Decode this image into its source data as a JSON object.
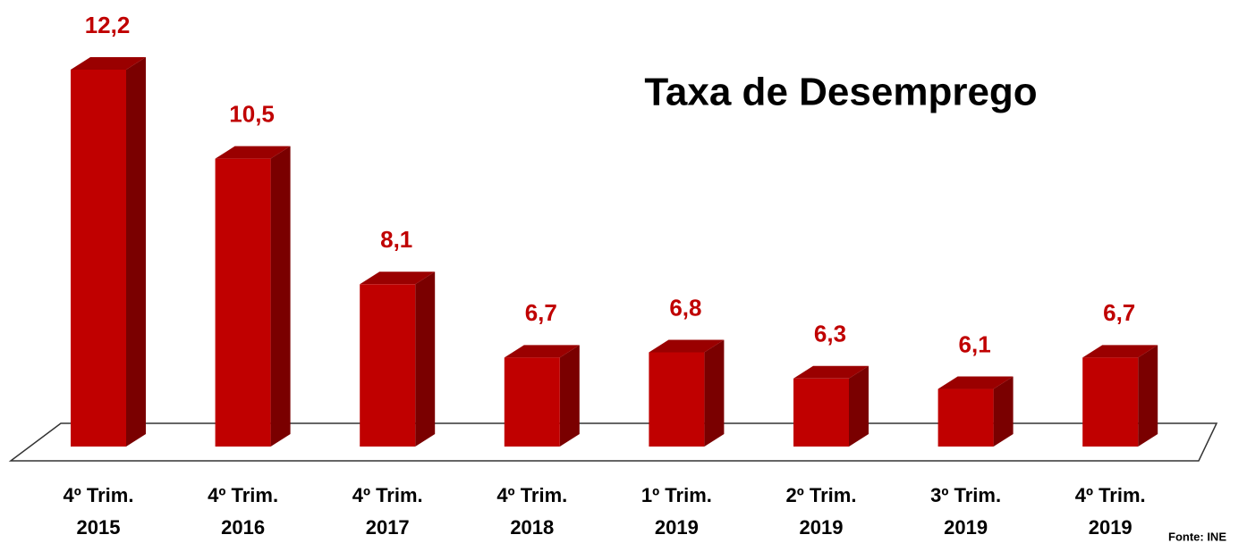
{
  "chart_data": {
    "type": "bar3d",
    "title": "Taxa de Desemprego",
    "categories": [
      [
        "4º Trim.",
        "2015"
      ],
      [
        "4º Trim.",
        "2016"
      ],
      [
        "4º Trim.",
        "2017"
      ],
      [
        "4º Trim.",
        "2018"
      ],
      [
        "1º Trim.",
        "2019"
      ],
      [
        "2º Trim.",
        "2019"
      ],
      [
        "3º Trim.",
        "2019"
      ],
      [
        "4º Trim.",
        "2019"
      ]
    ],
    "values": [
      12.2,
      10.5,
      8.1,
      6.7,
      6.8,
      6.3,
      6.1,
      6.7
    ],
    "value_labels": [
      "12,2",
      "10,5",
      "8,1",
      "6,7",
      "6,8",
      "6,3",
      "6,1",
      "6,7"
    ],
    "ylim": [
      5,
      12.2
    ],
    "color": "#c00000",
    "source": "Fonte: INE"
  }
}
